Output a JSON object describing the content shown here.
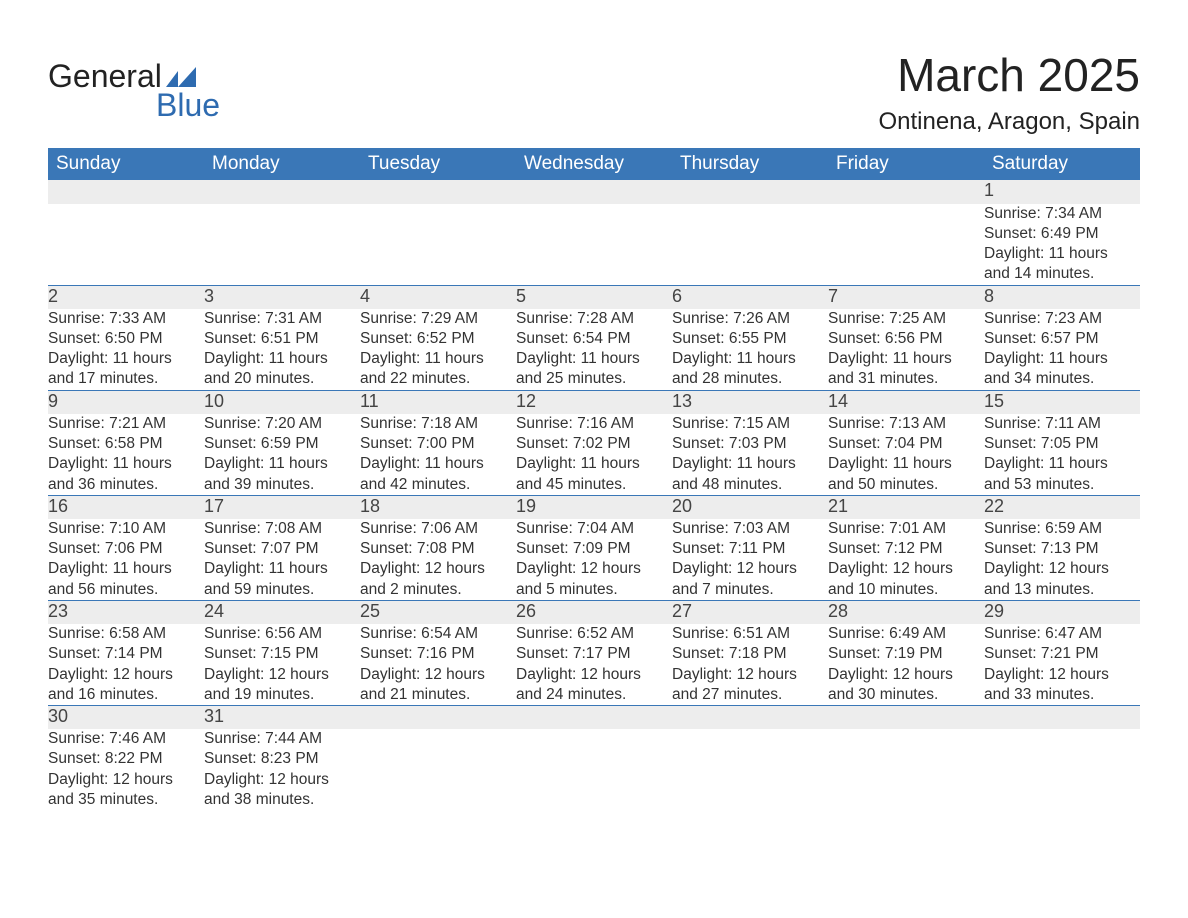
{
  "brand": {
    "word1": "General",
    "word2": "Blue",
    "shape_color": "#2e6bb0",
    "text_color": "#222222"
  },
  "title": "March 2025",
  "location": "Ontinena, Aragon, Spain",
  "colors": {
    "header_bg": "#3a77b7",
    "header_text": "#ffffff",
    "daynum_bg": "#ededed",
    "row_border": "#3a77b7",
    "body_text": "#333333",
    "page_bg": "#ffffff"
  },
  "fonts": {
    "title_size_pt": 34,
    "location_size_pt": 18,
    "header_size_pt": 14,
    "cell_size_pt": 12
  },
  "calendar": {
    "dow": [
      "Sunday",
      "Monday",
      "Tuesday",
      "Wednesday",
      "Thursday",
      "Friday",
      "Saturday"
    ],
    "weeks": [
      [
        null,
        null,
        null,
        null,
        null,
        null,
        {
          "n": "1",
          "sr": "Sunrise: 7:34 AM",
          "ss": "Sunset: 6:49 PM",
          "d1": "Daylight: 11 hours",
          "d2": "and 14 minutes."
        }
      ],
      [
        {
          "n": "2",
          "sr": "Sunrise: 7:33 AM",
          "ss": "Sunset: 6:50 PM",
          "d1": "Daylight: 11 hours",
          "d2": "and 17 minutes."
        },
        {
          "n": "3",
          "sr": "Sunrise: 7:31 AM",
          "ss": "Sunset: 6:51 PM",
          "d1": "Daylight: 11 hours",
          "d2": "and 20 minutes."
        },
        {
          "n": "4",
          "sr": "Sunrise: 7:29 AM",
          "ss": "Sunset: 6:52 PM",
          "d1": "Daylight: 11 hours",
          "d2": "and 22 minutes."
        },
        {
          "n": "5",
          "sr": "Sunrise: 7:28 AM",
          "ss": "Sunset: 6:54 PM",
          "d1": "Daylight: 11 hours",
          "d2": "and 25 minutes."
        },
        {
          "n": "6",
          "sr": "Sunrise: 7:26 AM",
          "ss": "Sunset: 6:55 PM",
          "d1": "Daylight: 11 hours",
          "d2": "and 28 minutes."
        },
        {
          "n": "7",
          "sr": "Sunrise: 7:25 AM",
          "ss": "Sunset: 6:56 PM",
          "d1": "Daylight: 11 hours",
          "d2": "and 31 minutes."
        },
        {
          "n": "8",
          "sr": "Sunrise: 7:23 AM",
          "ss": "Sunset: 6:57 PM",
          "d1": "Daylight: 11 hours",
          "d2": "and 34 minutes."
        }
      ],
      [
        {
          "n": "9",
          "sr": "Sunrise: 7:21 AM",
          "ss": "Sunset: 6:58 PM",
          "d1": "Daylight: 11 hours",
          "d2": "and 36 minutes."
        },
        {
          "n": "10",
          "sr": "Sunrise: 7:20 AM",
          "ss": "Sunset: 6:59 PM",
          "d1": "Daylight: 11 hours",
          "d2": "and 39 minutes."
        },
        {
          "n": "11",
          "sr": "Sunrise: 7:18 AM",
          "ss": "Sunset: 7:00 PM",
          "d1": "Daylight: 11 hours",
          "d2": "and 42 minutes."
        },
        {
          "n": "12",
          "sr": "Sunrise: 7:16 AM",
          "ss": "Sunset: 7:02 PM",
          "d1": "Daylight: 11 hours",
          "d2": "and 45 minutes."
        },
        {
          "n": "13",
          "sr": "Sunrise: 7:15 AM",
          "ss": "Sunset: 7:03 PM",
          "d1": "Daylight: 11 hours",
          "d2": "and 48 minutes."
        },
        {
          "n": "14",
          "sr": "Sunrise: 7:13 AM",
          "ss": "Sunset: 7:04 PM",
          "d1": "Daylight: 11 hours",
          "d2": "and 50 minutes."
        },
        {
          "n": "15",
          "sr": "Sunrise: 7:11 AM",
          "ss": "Sunset: 7:05 PM",
          "d1": "Daylight: 11 hours",
          "d2": "and 53 minutes."
        }
      ],
      [
        {
          "n": "16",
          "sr": "Sunrise: 7:10 AM",
          "ss": "Sunset: 7:06 PM",
          "d1": "Daylight: 11 hours",
          "d2": "and 56 minutes."
        },
        {
          "n": "17",
          "sr": "Sunrise: 7:08 AM",
          "ss": "Sunset: 7:07 PM",
          "d1": "Daylight: 11 hours",
          "d2": "and 59 minutes."
        },
        {
          "n": "18",
          "sr": "Sunrise: 7:06 AM",
          "ss": "Sunset: 7:08 PM",
          "d1": "Daylight: 12 hours",
          "d2": "and 2 minutes."
        },
        {
          "n": "19",
          "sr": "Sunrise: 7:04 AM",
          "ss": "Sunset: 7:09 PM",
          "d1": "Daylight: 12 hours",
          "d2": "and 5 minutes."
        },
        {
          "n": "20",
          "sr": "Sunrise: 7:03 AM",
          "ss": "Sunset: 7:11 PM",
          "d1": "Daylight: 12 hours",
          "d2": "and 7 minutes."
        },
        {
          "n": "21",
          "sr": "Sunrise: 7:01 AM",
          "ss": "Sunset: 7:12 PM",
          "d1": "Daylight: 12 hours",
          "d2": "and 10 minutes."
        },
        {
          "n": "22",
          "sr": "Sunrise: 6:59 AM",
          "ss": "Sunset: 7:13 PM",
          "d1": "Daylight: 12 hours",
          "d2": "and 13 minutes."
        }
      ],
      [
        {
          "n": "23",
          "sr": "Sunrise: 6:58 AM",
          "ss": "Sunset: 7:14 PM",
          "d1": "Daylight: 12 hours",
          "d2": "and 16 minutes."
        },
        {
          "n": "24",
          "sr": "Sunrise: 6:56 AM",
          "ss": "Sunset: 7:15 PM",
          "d1": "Daylight: 12 hours",
          "d2": "and 19 minutes."
        },
        {
          "n": "25",
          "sr": "Sunrise: 6:54 AM",
          "ss": "Sunset: 7:16 PM",
          "d1": "Daylight: 12 hours",
          "d2": "and 21 minutes."
        },
        {
          "n": "26",
          "sr": "Sunrise: 6:52 AM",
          "ss": "Sunset: 7:17 PM",
          "d1": "Daylight: 12 hours",
          "d2": "and 24 minutes."
        },
        {
          "n": "27",
          "sr": "Sunrise: 6:51 AM",
          "ss": "Sunset: 7:18 PM",
          "d1": "Daylight: 12 hours",
          "d2": "and 27 minutes."
        },
        {
          "n": "28",
          "sr": "Sunrise: 6:49 AM",
          "ss": "Sunset: 7:19 PM",
          "d1": "Daylight: 12 hours",
          "d2": "and 30 minutes."
        },
        {
          "n": "29",
          "sr": "Sunrise: 6:47 AM",
          "ss": "Sunset: 7:21 PM",
          "d1": "Daylight: 12 hours",
          "d2": "and 33 minutes."
        }
      ],
      [
        {
          "n": "30",
          "sr": "Sunrise: 7:46 AM",
          "ss": "Sunset: 8:22 PM",
          "d1": "Daylight: 12 hours",
          "d2": "and 35 minutes."
        },
        {
          "n": "31",
          "sr": "Sunrise: 7:44 AM",
          "ss": "Sunset: 8:23 PM",
          "d1": "Daylight: 12 hours",
          "d2": "and 38 minutes."
        },
        null,
        null,
        null,
        null,
        null
      ]
    ]
  }
}
